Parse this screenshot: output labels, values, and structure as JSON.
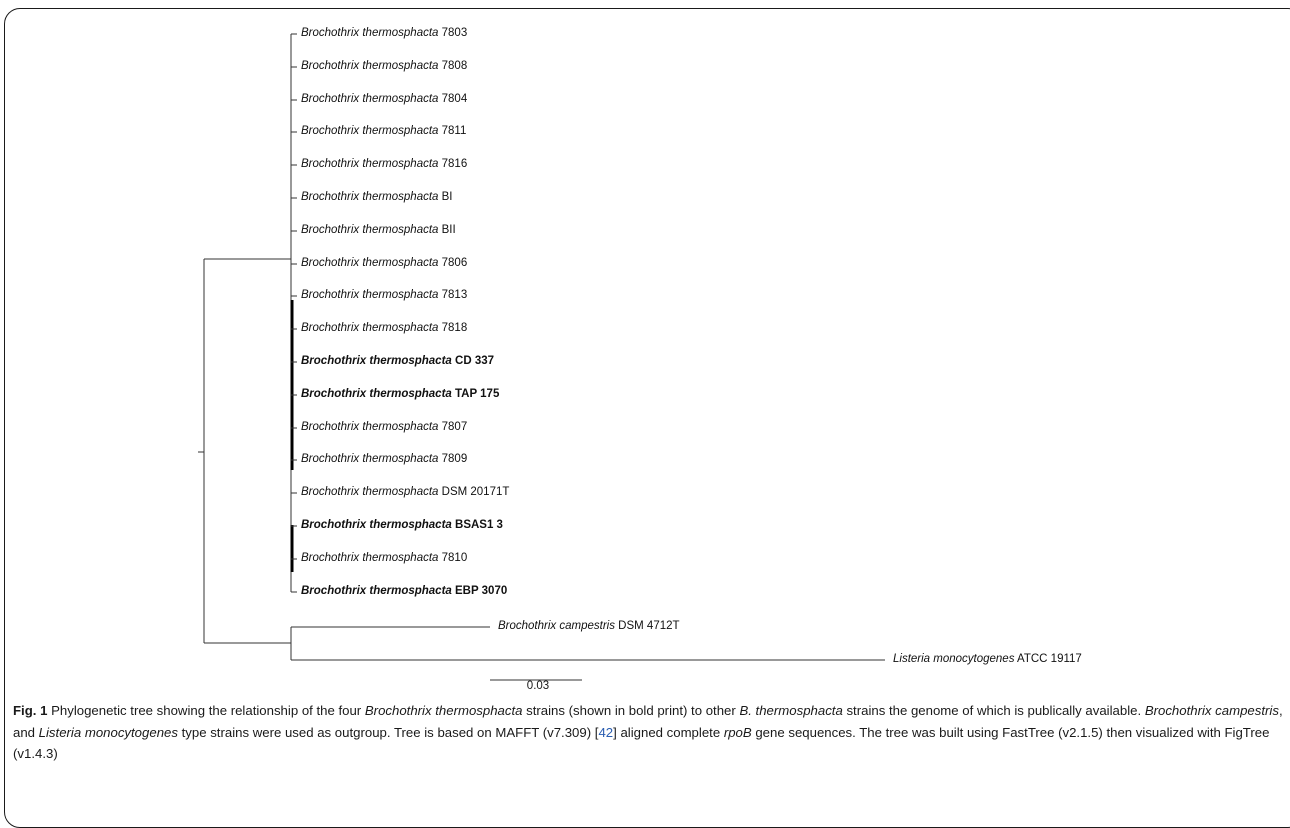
{
  "tree": {
    "leaves": [
      {
        "species": "Brochothrix thermosphacta",
        "strain": "7803",
        "bold": false
      },
      {
        "species": "Brochothrix thermosphacta",
        "strain": "7808",
        "bold": false
      },
      {
        "species": "Brochothrix thermosphacta",
        "strain": "7804",
        "bold": false
      },
      {
        "species": "Brochothrix thermosphacta",
        "strain": "7811",
        "bold": false
      },
      {
        "species": "Brochothrix thermosphacta",
        "strain": "7816",
        "bold": false
      },
      {
        "species": "Brochothrix thermosphacta",
        "strain": "BI",
        "bold": false
      },
      {
        "species": "Brochothrix thermosphacta",
        "strain": "BII",
        "bold": false
      },
      {
        "species": "Brochothrix thermosphacta",
        "strain": "7806",
        "bold": false
      },
      {
        "species": "Brochothrix thermosphacta",
        "strain": "7813",
        "bold": false
      },
      {
        "species": "Brochothrix thermosphacta",
        "strain": "7818",
        "bold": false
      },
      {
        "species": "Brochothrix thermosphacta",
        "strain": "CD 337",
        "bold": true
      },
      {
        "species": "Brochothrix thermosphacta",
        "strain": "TAP 175",
        "bold": true
      },
      {
        "species": "Brochothrix thermosphacta",
        "strain": "7807",
        "bold": false
      },
      {
        "species": "Brochothrix thermosphacta",
        "strain": "7809",
        "bold": false
      },
      {
        "species": "Brochothrix thermosphacta",
        "strain": "DSM 20171T",
        "bold": false
      },
      {
        "species": "Brochothrix thermosphacta",
        "strain": "BSAS1 3",
        "bold": true
      },
      {
        "species": "Brochothrix thermosphacta",
        "strain": "7810",
        "bold": false
      },
      {
        "species": "Brochothrix thermosphacta",
        "strain": "EBP 3070",
        "bold": true
      },
      {
        "species": "Brochothrix campestris",
        "strain": "DSM 4712T",
        "bold": false
      },
      {
        "species": "Listeria monocytogenes",
        "strain": "ATCC 19117",
        "bold": false
      }
    ],
    "scale_bar_label": "0.03"
  },
  "caption": {
    "fig_label": "Fig. 1",
    "t1": " Phylogenetic tree showing the relationship of the four ",
    "i1": "Brochothrix thermosphacta",
    "t2": " strains (shown in bold print) to other ",
    "i2": "B. thermosphacta",
    "t3": " strains the genome of which is publically available. ",
    "i3": "Brochothrix campestris",
    "t4": ", and ",
    "i4": "Listeria monocytogenes",
    "t5": " type strains were used as outgroup. Tree is based on MAFFT (v7.309) [",
    "ref": "42",
    "t6": "] aligned complete ",
    "i5": "rpoB",
    "t7": " gene sequences. The tree was built using FastTree (v2.1.5) then visualized with FigTree (v1.4.3)"
  }
}
